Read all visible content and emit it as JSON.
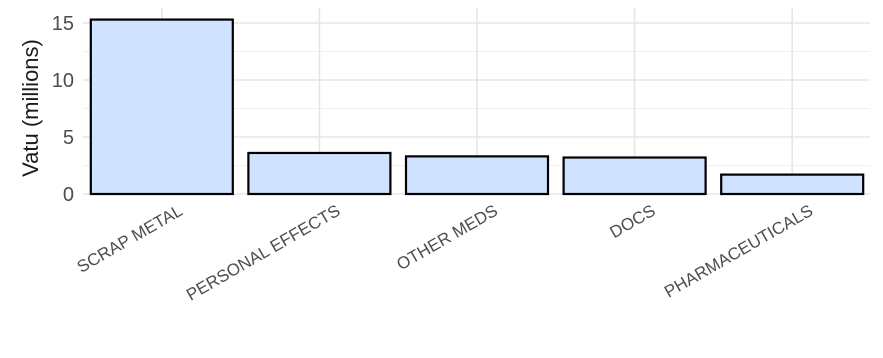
{
  "chart_data": {
    "type": "bar",
    "title": "",
    "xlabel": "",
    "ylabel": "Vatu (millions)",
    "categories": [
      "SCRAP METAL",
      "PERSONAL EFFECTS",
      "OTHER MEDS",
      "DOCS",
      "PHARMACEUTICALS"
    ],
    "values": [
      15.3,
      3.6,
      3.3,
      3.2,
      1.7
    ],
    "ylim": [
      0,
      16
    ],
    "yticks": [
      0,
      5,
      10,
      15
    ],
    "ytick_labels": [
      "0",
      "5",
      "10",
      "15"
    ],
    "grid": true,
    "legend": "none",
    "bar_color": "#cfe2ff",
    "bar_edge_color": "#000000"
  }
}
